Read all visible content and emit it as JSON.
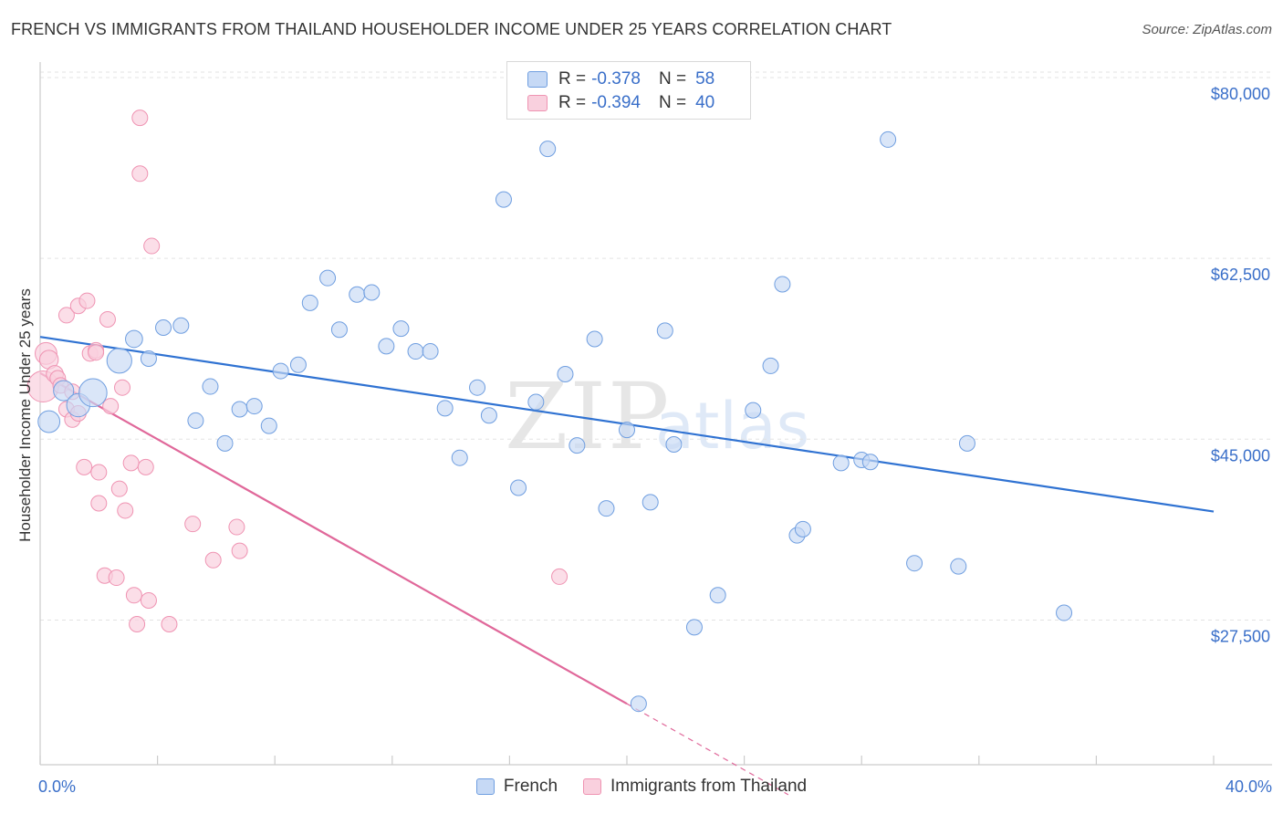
{
  "title": "FRENCH VS IMMIGRANTS FROM THAILAND HOUSEHOLDER INCOME UNDER 25 YEARS CORRELATION CHART",
  "source": "Source: ZipAtlas.com",
  "watermark": {
    "zip": "ZIP",
    "atlas": "atlas"
  },
  "legend": {
    "r_label": "R =",
    "n_label": "N =",
    "french": {
      "r": "-0.378",
      "n": "58"
    },
    "thailand": {
      "r": "-0.394",
      "n": "40"
    }
  },
  "bottom_legend": {
    "french": "French",
    "thailand": "Immigrants from Thailand"
  },
  "x_tick_labels": {
    "min": "0.0%",
    "max": "40.0%"
  },
  "colors": {
    "french_fill": "#c6d9f5",
    "french_stroke": "#6f9ee0",
    "french_line": "#2f72d2",
    "thai_fill": "#f9d0de",
    "thai_stroke": "#ef93b2",
    "thai_line": "#e0689a",
    "axis_text": "#3a6fc9",
    "grid": "#e3e3e3"
  },
  "chart_data": {
    "type": "scatter",
    "title": "FRENCH VS IMMIGRANTS FROM THAILAND HOUSEHOLDER INCOME UNDER 25 YEARS CORRELATION CHART",
    "xlabel": "",
    "ylabel": "Householder Income Under 25 years",
    "xlim": [
      0,
      40
    ],
    "ylim": [
      13500,
      81500
    ],
    "y_ticks": [
      {
        "value": 27500,
        "label": "$27,500"
      },
      {
        "value": 45000,
        "label": "$45,000"
      },
      {
        "value": 62500,
        "label": "$62,500"
      },
      {
        "value": 80000,
        "label": "$80,000"
      }
    ],
    "grid": true,
    "legend_position": "top-center",
    "series": [
      {
        "name": "French",
        "r": -0.378,
        "n": 58,
        "trend": {
          "x": [
            0,
            40
          ],
          "y": [
            54900,
            38000
          ]
        },
        "points": [
          {
            "x": 0.3,
            "y": 46700,
            "s": 1.4
          },
          {
            "x": 0.8,
            "y": 49700,
            "s": 1.3
          },
          {
            "x": 1.3,
            "y": 48300,
            "s": 1.5
          },
          {
            "x": 1.8,
            "y": 49500,
            "s": 1.8
          },
          {
            "x": 2.7,
            "y": 52600,
            "s": 1.6
          },
          {
            "x": 3.2,
            "y": 54700,
            "s": 1.1
          },
          {
            "x": 3.7,
            "y": 52800,
            "s": 1
          },
          {
            "x": 4.2,
            "y": 55800,
            "s": 1
          },
          {
            "x": 4.8,
            "y": 56000,
            "s": 1
          },
          {
            "x": 5.3,
            "y": 46800,
            "s": 1
          },
          {
            "x": 5.8,
            "y": 50100,
            "s": 1
          },
          {
            "x": 6.3,
            "y": 44600,
            "s": 1
          },
          {
            "x": 6.8,
            "y": 47900,
            "s": 1
          },
          {
            "x": 7.3,
            "y": 48200,
            "s": 1
          },
          {
            "x": 7.8,
            "y": 46300,
            "s": 1
          },
          {
            "x": 8.2,
            "y": 51600,
            "s": 1
          },
          {
            "x": 8.8,
            "y": 52200,
            "s": 1
          },
          {
            "x": 9.2,
            "y": 58200,
            "s": 1
          },
          {
            "x": 9.8,
            "y": 60600,
            "s": 1
          },
          {
            "x": 10.2,
            "y": 55600,
            "s": 1
          },
          {
            "x": 10.8,
            "y": 59000,
            "s": 1
          },
          {
            "x": 11.3,
            "y": 59200,
            "s": 1
          },
          {
            "x": 11.8,
            "y": 54000,
            "s": 1
          },
          {
            "x": 12.3,
            "y": 55700,
            "s": 1
          },
          {
            "x": 12.8,
            "y": 53500,
            "s": 1
          },
          {
            "x": 13.3,
            "y": 53500,
            "s": 1
          },
          {
            "x": 13.8,
            "y": 48000,
            "s": 1
          },
          {
            "x": 14.3,
            "y": 43200,
            "s": 1
          },
          {
            "x": 14.9,
            "y": 50000,
            "s": 1
          },
          {
            "x": 15.3,
            "y": 47300,
            "s": 1
          },
          {
            "x": 15.8,
            "y": 68200,
            "s": 1
          },
          {
            "x": 16.3,
            "y": 40300,
            "s": 1
          },
          {
            "x": 16.9,
            "y": 48600,
            "s": 1
          },
          {
            "x": 17.3,
            "y": 73100,
            "s": 1
          },
          {
            "x": 17.9,
            "y": 51300,
            "s": 1
          },
          {
            "x": 18.3,
            "y": 44400,
            "s": 1
          },
          {
            "x": 18.9,
            "y": 54700,
            "s": 1
          },
          {
            "x": 19.3,
            "y": 38300,
            "s": 1
          },
          {
            "x": 20.0,
            "y": 45900,
            "s": 1
          },
          {
            "x": 20.4,
            "y": 19400,
            "s": 1
          },
          {
            "x": 20.8,
            "y": 38900,
            "s": 1
          },
          {
            "x": 21.3,
            "y": 55500,
            "s": 1
          },
          {
            "x": 21.6,
            "y": 44500,
            "s": 1
          },
          {
            "x": 22.3,
            "y": 26800,
            "s": 1
          },
          {
            "x": 23.1,
            "y": 29900,
            "s": 1
          },
          {
            "x": 24.3,
            "y": 47800,
            "s": 1
          },
          {
            "x": 24.9,
            "y": 52100,
            "s": 1
          },
          {
            "x": 25.3,
            "y": 60000,
            "s": 1
          },
          {
            "x": 25.8,
            "y": 35700,
            "s": 1
          },
          {
            "x": 26.0,
            "y": 36300,
            "s": 1
          },
          {
            "x": 27.3,
            "y": 42700,
            "s": 1
          },
          {
            "x": 28.0,
            "y": 43000,
            "s": 1
          },
          {
            "x": 28.9,
            "y": 74000,
            "s": 1
          },
          {
            "x": 28.3,
            "y": 42800,
            "s": 1
          },
          {
            "x": 29.8,
            "y": 33000,
            "s": 1
          },
          {
            "x": 31.6,
            "y": 44600,
            "s": 1
          },
          {
            "x": 31.3,
            "y": 32700,
            "s": 1
          },
          {
            "x": 34.9,
            "y": 28200,
            "s": 1
          }
        ]
      },
      {
        "name": "Immigrants from Thailand",
        "r": -0.394,
        "n": 40,
        "trend": {
          "x": [
            0,
            20
          ],
          "y": [
            51400,
            19400
          ]
        },
        "trend_dashed": {
          "x": [
            20,
            25.5
          ],
          "y": [
            19400,
            10600
          ]
        },
        "points": [
          {
            "x": 0.1,
            "y": 50100,
            "s": 2.0
          },
          {
            "x": 0.2,
            "y": 53300,
            "s": 1.4
          },
          {
            "x": 0.3,
            "y": 52700,
            "s": 1.2
          },
          {
            "x": 0.5,
            "y": 51300,
            "s": 1.1
          },
          {
            "x": 0.6,
            "y": 50900,
            "s": 1
          },
          {
            "x": 0.7,
            "y": 50200,
            "s": 1
          },
          {
            "x": 0.9,
            "y": 47900,
            "s": 1
          },
          {
            "x": 0.9,
            "y": 57000,
            "s": 1
          },
          {
            "x": 1.1,
            "y": 49600,
            "s": 1
          },
          {
            "x": 1.1,
            "y": 46900,
            "s": 1
          },
          {
            "x": 1.3,
            "y": 47500,
            "s": 1
          },
          {
            "x": 1.3,
            "y": 57900,
            "s": 1
          },
          {
            "x": 1.5,
            "y": 42300,
            "s": 1
          },
          {
            "x": 1.6,
            "y": 58400,
            "s": 1
          },
          {
            "x": 1.7,
            "y": 53300,
            "s": 1
          },
          {
            "x": 1.9,
            "y": 53600,
            "s": 1
          },
          {
            "x": 2.0,
            "y": 41800,
            "s": 1
          },
          {
            "x": 2.0,
            "y": 38800,
            "s": 1
          },
          {
            "x": 2.2,
            "y": 31800,
            "s": 1
          },
          {
            "x": 2.3,
            "y": 56600,
            "s": 1
          },
          {
            "x": 2.4,
            "y": 48200,
            "s": 1
          },
          {
            "x": 2.6,
            "y": 31600,
            "s": 1
          },
          {
            "x": 2.7,
            "y": 40200,
            "s": 1
          },
          {
            "x": 2.8,
            "y": 50000,
            "s": 1
          },
          {
            "x": 2.9,
            "y": 38100,
            "s": 1
          },
          {
            "x": 3.1,
            "y": 42700,
            "s": 1
          },
          {
            "x": 3.2,
            "y": 29900,
            "s": 1
          },
          {
            "x": 3.3,
            "y": 27100,
            "s": 1
          },
          {
            "x": 3.4,
            "y": 76100,
            "s": 1
          },
          {
            "x": 3.4,
            "y": 70700,
            "s": 1
          },
          {
            "x": 3.6,
            "y": 42300,
            "s": 1
          },
          {
            "x": 3.7,
            "y": 29400,
            "s": 1
          },
          {
            "x": 3.8,
            "y": 63700,
            "s": 1
          },
          {
            "x": 4.4,
            "y": 27100,
            "s": 1
          },
          {
            "x": 5.2,
            "y": 36800,
            "s": 1
          },
          {
            "x": 5.9,
            "y": 33300,
            "s": 1
          },
          {
            "x": 6.7,
            "y": 36500,
            "s": 1
          },
          {
            "x": 6.8,
            "y": 34200,
            "s": 1
          },
          {
            "x": 17.7,
            "y": 31700,
            "s": 1
          },
          {
            "x": 1.9,
            "y": 53400,
            "s": 1
          }
        ]
      }
    ]
  }
}
